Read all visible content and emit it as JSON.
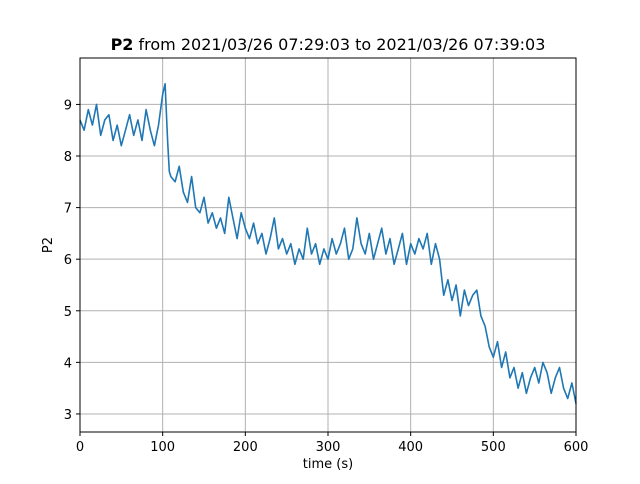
{
  "chart_data": {
    "type": "line",
    "title_bold": "P2",
    "title_rest": " from 2021/03/26 07:29:03 to 2021/03/26 07:39:03",
    "xlabel": "time (s)",
    "ylabel": "P2",
    "xlim": [
      0,
      600
    ],
    "ylim": [
      2.65,
      9.9
    ],
    "xticks": [
      0,
      100,
      200,
      300,
      400,
      500,
      600
    ],
    "yticks": [
      3,
      4,
      5,
      6,
      7,
      8,
      9
    ],
    "grid": true,
    "legend": "none",
    "series_color": "#1f77b4",
    "series": [
      {
        "name": "",
        "x": [
          0,
          5,
          10,
          15,
          20,
          25,
          30,
          35,
          40,
          45,
          50,
          55,
          60,
          65,
          70,
          75,
          80,
          85,
          90,
          95,
          100,
          103,
          106,
          108,
          110,
          115,
          120,
          125,
          130,
          135,
          140,
          145,
          150,
          155,
          160,
          165,
          170,
          175,
          180,
          185,
          190,
          195,
          200,
          205,
          210,
          215,
          220,
          225,
          230,
          235,
          240,
          245,
          250,
          255,
          260,
          265,
          270,
          275,
          280,
          285,
          290,
          295,
          300,
          305,
          310,
          315,
          320,
          325,
          330,
          335,
          340,
          345,
          350,
          355,
          360,
          365,
          370,
          375,
          380,
          385,
          390,
          395,
          400,
          405,
          410,
          415,
          420,
          425,
          430,
          435,
          440,
          445,
          450,
          455,
          460,
          465,
          470,
          475,
          480,
          485,
          490,
          495,
          500,
          505,
          510,
          515,
          520,
          525,
          530,
          535,
          540,
          545,
          550,
          555,
          560,
          565,
          570,
          575,
          580,
          585,
          590,
          595,
          600
        ],
        "y": [
          8.7,
          8.5,
          8.9,
          8.6,
          9.0,
          8.4,
          8.7,
          8.8,
          8.3,
          8.6,
          8.2,
          8.5,
          8.8,
          8.4,
          8.7,
          8.3,
          8.9,
          8.5,
          8.2,
          8.6,
          9.2,
          9.4,
          8.3,
          7.7,
          7.6,
          7.5,
          7.8,
          7.3,
          7.1,
          7.6,
          7.0,
          6.9,
          7.2,
          6.7,
          6.9,
          6.6,
          6.8,
          6.5,
          7.2,
          6.8,
          6.4,
          6.9,
          6.6,
          6.4,
          6.7,
          6.3,
          6.5,
          6.1,
          6.4,
          6.8,
          6.2,
          6.4,
          6.1,
          6.3,
          5.9,
          6.2,
          6.0,
          6.6,
          6.1,
          6.3,
          5.9,
          6.2,
          6.0,
          6.4,
          6.1,
          6.3,
          6.6,
          6.0,
          6.2,
          6.8,
          6.3,
          6.1,
          6.5,
          6.0,
          6.3,
          6.6,
          6.1,
          6.4,
          5.9,
          6.2,
          6.5,
          5.9,
          6.3,
          6.1,
          6.4,
          6.2,
          6.5,
          5.9,
          6.3,
          6.0,
          5.3,
          5.6,
          5.2,
          5.5,
          4.9,
          5.4,
          5.1,
          5.3,
          5.4,
          4.9,
          4.7,
          4.3,
          4.1,
          4.4,
          3.9,
          4.2,
          3.7,
          3.9,
          3.5,
          3.8,
          3.4,
          3.7,
          3.9,
          3.6,
          4.0,
          3.8,
          3.4,
          3.7,
          3.9,
          3.5,
          3.3,
          3.6,
          3.2
        ]
      }
    ]
  }
}
